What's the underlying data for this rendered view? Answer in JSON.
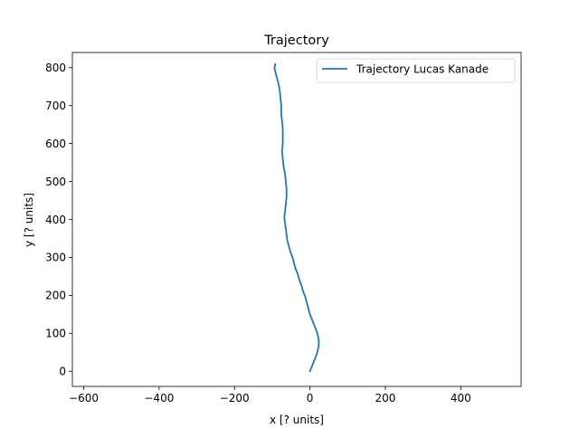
{
  "chart_data": {
    "type": "line",
    "title": "Trajectory",
    "xlabel": "x [? units]",
    "ylabel": "y [? units]",
    "xlim": [
      -630,
      560
    ],
    "ylim": [
      -40,
      840
    ],
    "xticks": [
      -600,
      -400,
      -200,
      0,
      200,
      400
    ],
    "yticks": [
      0,
      100,
      200,
      300,
      400,
      500,
      600,
      700,
      800
    ],
    "xtick_labels": [
      "−600",
      "−400",
      "−200",
      "0",
      "200",
      "400"
    ],
    "ytick_labels": [
      "0",
      "100",
      "200",
      "300",
      "400",
      "500",
      "600",
      "700",
      "800"
    ],
    "grid": false,
    "legend": {
      "position": "upper right"
    },
    "series": [
      {
        "name": "Trajectory Lucas Kanade",
        "color": "#1f77b4",
        "x": [
          0,
          6,
          12,
          18,
          22,
          24,
          22,
          18,
          12,
          6,
          0,
          -4,
          -8,
          -12,
          -18,
          -22,
          -28,
          -32,
          -38,
          -42,
          -46,
          -52,
          -56,
          -60,
          -62,
          -64,
          -66,
          -68,
          -66,
          -64,
          -62,
          -62,
          -64,
          -66,
          -70,
          -72,
          -74,
          -72,
          -72,
          -72,
          -74,
          -76,
          -76,
          -78,
          -80,
          -84,
          -88,
          -92,
          -94,
          -92
        ],
        "y": [
          0,
          15,
          30,
          45,
          60,
          75,
          90,
          105,
          120,
          135,
          150,
          165,
          180,
          195,
          210,
          225,
          240,
          255,
          270,
          285,
          300,
          315,
          330,
          345,
          360,
          375,
          390,
          405,
          420,
          440,
          460,
          480,
          500,
          520,
          540,
          560,
          580,
          600,
          620,
          640,
          660,
          680,
          700,
          720,
          740,
          760,
          775,
          790,
          800,
          810
        ]
      }
    ]
  }
}
